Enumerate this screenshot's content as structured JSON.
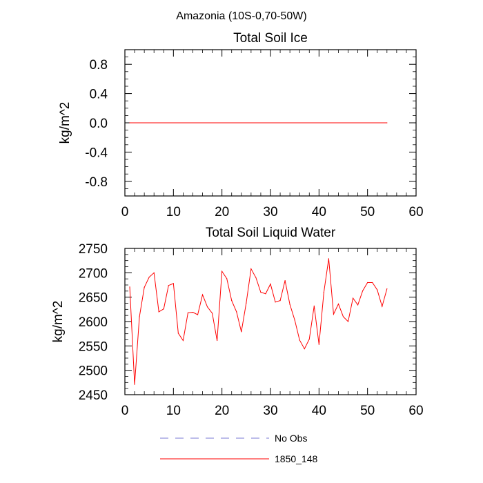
{
  "main_title": "Amazonia (10S-0,70-50W)",
  "legend": {
    "items": [
      {
        "label": "No Obs",
        "color": "#7b7bd6",
        "style": "dashed"
      },
      {
        "label": "1850_148",
        "color": "#ff0000",
        "style": "solid"
      }
    ]
  },
  "colors": {
    "series": "#ff0000",
    "axis": "#000000"
  },
  "chart_data": [
    {
      "type": "line",
      "title": "Total Soil Ice",
      "xlabel": "",
      "ylabel": "kg/m^2",
      "xlim": [
        0,
        60
      ],
      "ylim": [
        -1,
        1
      ],
      "x_ticks": [
        0,
        10,
        20,
        30,
        40,
        50,
        60
      ],
      "y_ticks": [
        -0.8,
        -0.4,
        0.0,
        0.4,
        0.8
      ],
      "x_tick_labels": [
        "0",
        "10",
        "20",
        "30",
        "40",
        "50",
        "60"
      ],
      "y_tick_labels": [
        "-0.8",
        "-0.4",
        "0.0",
        "0.4",
        "0.8"
      ],
      "grid": false,
      "series": [
        {
          "name": "1850_148",
          "x": [
            1,
            54
          ],
          "values": [
            0,
            0
          ]
        }
      ]
    },
    {
      "type": "line",
      "title": "Total Soil Liquid Water",
      "xlabel": "",
      "ylabel": "kg/m^2",
      "xlim": [
        0,
        60
      ],
      "ylim": [
        2450,
        2750
      ],
      "x_ticks": [
        0,
        10,
        20,
        30,
        40,
        50,
        60
      ],
      "y_ticks": [
        2450,
        2500,
        2550,
        2600,
        2650,
        2700,
        2750
      ],
      "x_tick_labels": [
        "0",
        "10",
        "20",
        "30",
        "40",
        "50",
        "60"
      ],
      "y_tick_labels": [
        "2450",
        "2500",
        "2550",
        "2600",
        "2650",
        "2700",
        "2750"
      ],
      "grid": false,
      "series": [
        {
          "name": "1850_148",
          "x": [
            1,
            2,
            3,
            4,
            5,
            6,
            7,
            8,
            9,
            10,
            11,
            12,
            13,
            14,
            15,
            16,
            17,
            18,
            19,
            20,
            21,
            22,
            23,
            24,
            25,
            26,
            27,
            28,
            29,
            30,
            31,
            32,
            33,
            34,
            35,
            36,
            37,
            38,
            39,
            40,
            41,
            42,
            43,
            44,
            45,
            46,
            47,
            48,
            49,
            50,
            51,
            52,
            53,
            54
          ],
          "values": [
            2671,
            2471,
            2610,
            2670,
            2691,
            2700,
            2620,
            2626,
            2674,
            2678,
            2576,
            2561,
            2618,
            2619,
            2614,
            2655,
            2630,
            2617,
            2561,
            2703,
            2688,
            2643,
            2620,
            2579,
            2638,
            2708,
            2690,
            2660,
            2657,
            2677,
            2640,
            2643,
            2684,
            2635,
            2603,
            2562,
            2544,
            2564,
            2632,
            2553,
            2660,
            2729,
            2615,
            2636,
            2610,
            2600,
            2648,
            2634,
            2663,
            2680,
            2680,
            2665,
            2631,
            2667
          ]
        }
      ]
    }
  ]
}
